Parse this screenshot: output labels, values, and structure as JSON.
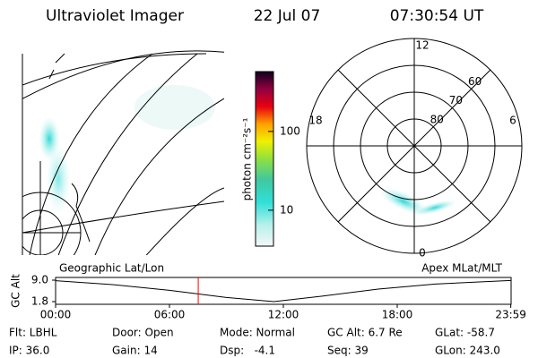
{
  "header": {
    "instrument": "Ultraviolet Imager",
    "date": "22 Jul 07",
    "time": "07:30:54 UT"
  },
  "colorbar": {
    "label": "photon cm⁻²s⁻¹",
    "scale": "log",
    "clim": [
      3.5,
      575
    ],
    "ticks": [
      10,
      100
    ]
  },
  "polar": {
    "rlim": [
      90,
      50
    ],
    "rings": [
      60,
      70,
      80
    ],
    "mlt_labels": {
      "top": "12",
      "left": "18",
      "right": "6",
      "bottom": "0"
    }
  },
  "panel_labels": {
    "left": "Geographic Lat/Lon",
    "right": "Apex MLat/MLT"
  },
  "altitude_plot": {
    "type": "line",
    "ylabel": "GC Alt",
    "x": [
      0,
      3,
      6,
      9,
      11.5,
      14,
      17,
      20,
      23.98
    ],
    "values": [
      8.8,
      7.5,
      5.6,
      3.2,
      1.8,
      3.6,
      6.0,
      7.7,
      8.9
    ],
    "xlim": [
      0,
      24
    ],
    "ylim": [
      1.8,
      9.0
    ],
    "yticks": [
      {
        "value": 9.0,
        "label": "9.0"
      },
      {
        "value": 1.8,
        "label": "1.8"
      }
    ],
    "xticks": [
      {
        "value": 0,
        "label": "00:00"
      },
      {
        "value": 6,
        "label": "06:00"
      },
      {
        "value": 12,
        "label": "12:00"
      },
      {
        "value": 18,
        "label": "18:00"
      },
      {
        "value": 23.983,
        "label": "23:59"
      }
    ],
    "color": "#000000",
    "marker_color": "#ff0000"
  },
  "info": [
    [
      "Flt: LBHL",
      "Door: Open",
      "Mode: Normal",
      "GC Alt: 6.7 Re",
      "GLat: -58.7"
    ],
    [
      "IP: 36.0",
      "Gain: 14",
      "Dsp:   -4.1",
      "Seq: 39",
      "GLon: 243.0"
    ]
  ]
}
